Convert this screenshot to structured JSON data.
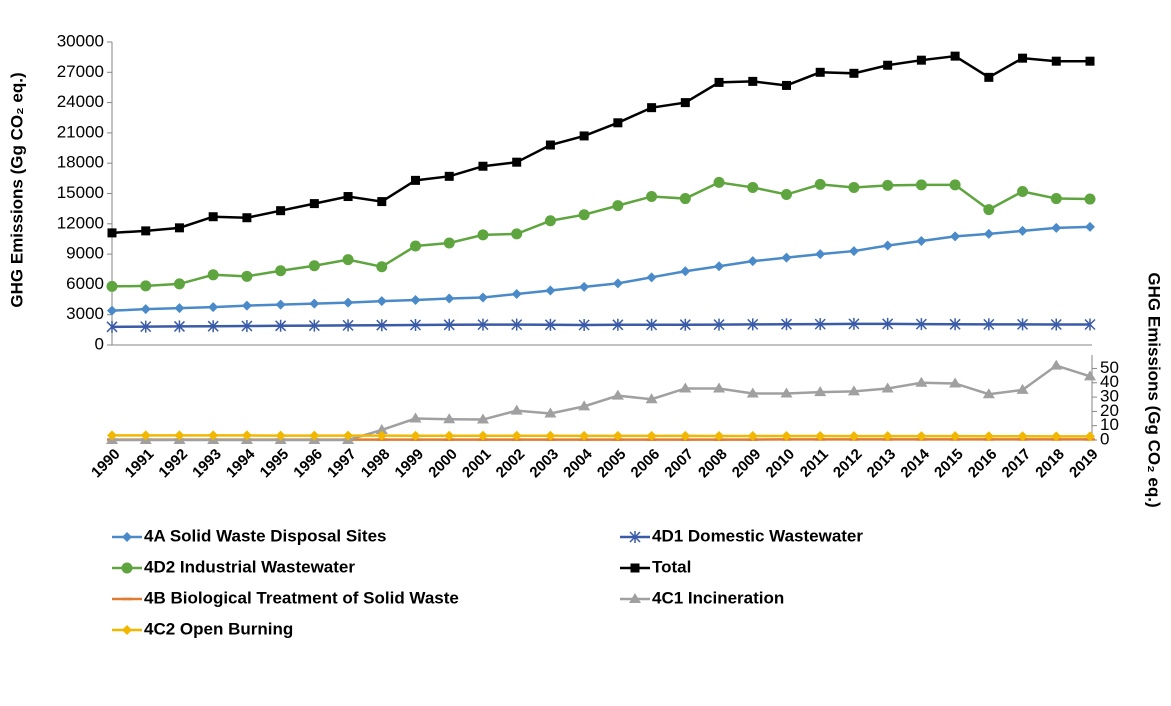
{
  "chart_data": {
    "type": "line",
    "ylabel": "GHG Emissions (Gg CO₂ eq.)",
    "y2label": "GHG Emissions (Gg CO₂ eq.)",
    "categories": [
      "1990",
      "1991",
      "1992",
      "1993",
      "1994",
      "1995",
      "1996",
      "1997",
      "1998",
      "1999",
      "2000",
      "2001",
      "2002",
      "2003",
      "2004",
      "2005",
      "2006",
      "2007",
      "2008",
      "2009",
      "2010",
      "2011",
      "2012",
      "2013",
      "2014",
      "2015",
      "2016",
      "2017",
      "2018",
      "2019"
    ],
    "ylim": [
      0,
      30000
    ],
    "yticks": [
      0,
      3000,
      6000,
      9000,
      12000,
      15000,
      18000,
      21000,
      24000,
      27000,
      30000
    ],
    "y2lim": [
      0,
      55
    ],
    "y2ticks": [
      0,
      10,
      20,
      30,
      40,
      50
    ],
    "series": [
      {
        "name": "4A Solid Waste Disposal Sites",
        "color": "#4a8ac9",
        "marker": "diamond",
        "values": [
          3400,
          3550,
          3650,
          3750,
          3900,
          4000,
          4100,
          4200,
          4350,
          4450,
          4600,
          4700,
          5050,
          5400,
          5750,
          6100,
          6700,
          7300,
          7800,
          8300,
          8650,
          9000,
          9300,
          9850,
          10300,
          10750,
          11000,
          11300,
          11600,
          11700
        ]
      },
      {
        "name": "4D1 Domestic Wastewater",
        "color": "#3a5ba8",
        "marker": "star",
        "values": [
          1800,
          1820,
          1840,
          1860,
          1880,
          1900,
          1920,
          1940,
          1960,
          1980,
          2000,
          2020,
          2020,
          2000,
          1980,
          2000,
          2000,
          2010,
          2020,
          2040,
          2060,
          2070,
          2090,
          2090,
          2070,
          2050,
          2040,
          2040,
          2030,
          2030
        ]
      },
      {
        "name": "4D2 Industrial Wastewater",
        "color": "#5fa53f",
        "marker": "circle",
        "values": [
          5800,
          5850,
          6050,
          6950,
          6800,
          7350,
          7850,
          8450,
          7750,
          9800,
          10100,
          10900,
          11000,
          12300,
          12900,
          13800,
          14700,
          14500,
          16100,
          15600,
          14900,
          15900,
          15600,
          15800,
          15850,
          15850,
          13400,
          15200,
          14500,
          14450
        ]
      },
      {
        "name": "Total",
        "color": "#000000",
        "marker": "square",
        "values": [
          11100,
          11300,
          11600,
          12700,
          12600,
          13300,
          14000,
          14700,
          14200,
          16300,
          16700,
          17700,
          18100,
          19800,
          20700,
          22000,
          23500,
          24000,
          26000,
          26100,
          25700,
          27000,
          26900,
          27700,
          28200,
          28600,
          26500,
          28400,
          28100,
          28100
        ]
      },
      {
        "name": "4B Biological Treatment of Solid Waste",
        "color": "#e07b30",
        "marker": "dash",
        "axis": "y2",
        "values": [
          0.3,
          0.3,
          0.3,
          0.3,
          0.3,
          0.3,
          0.3,
          0.3,
          0.3,
          0.3,
          0.3,
          0.3,
          0.3,
          0.3,
          0.3,
          0.3,
          0.3,
          0.3,
          0.3,
          0.3,
          0.4,
          0.4,
          0.4,
          0.4,
          0.4,
          0.4,
          0.4,
          0.4,
          0.4,
          0.4
        ]
      },
      {
        "name": "4C1 Incineration",
        "color": "#a0a0a0",
        "marker": "triangle",
        "axis": "y2",
        "values": [
          0,
          0,
          0,
          0,
          0,
          0,
          0,
          0,
          7,
          15,
          14.5,
          14.3,
          20.5,
          18.5,
          23.5,
          31,
          28.5,
          36,
          36,
          32.5,
          32.5,
          33.5,
          34,
          36,
          40,
          39.5,
          32,
          35,
          52,
          44.5
        ]
      },
      {
        "name": "4C2 Open Burning",
        "color": "#f2b800",
        "marker": "diamond",
        "axis": "y2",
        "values": [
          3.2,
          3.2,
          3.2,
          3.2,
          3.2,
          3.1,
          3.1,
          3.1,
          3.1,
          3.0,
          3.0,
          3.0,
          3.0,
          3.0,
          2.9,
          2.9,
          2.9,
          2.9,
          2.8,
          2.8,
          2.8,
          2.8,
          2.7,
          2.7,
          2.7,
          2.7,
          2.6,
          2.6,
          2.5,
          2.5
        ]
      }
    ]
  }
}
